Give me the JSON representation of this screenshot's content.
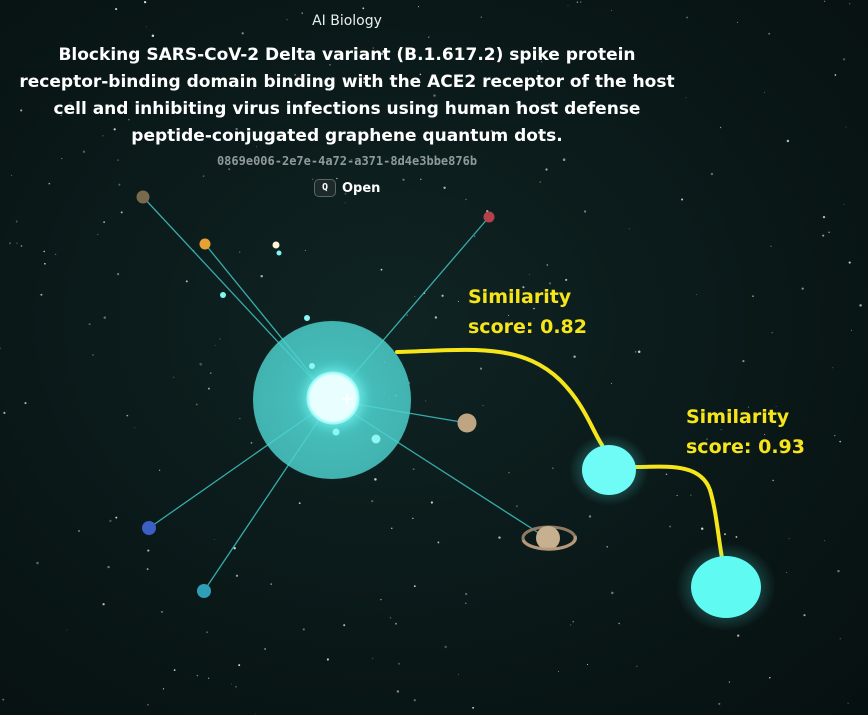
{
  "header": {
    "category": "AI Biology",
    "title": "Blocking SARS-CoV-2 Delta variant (B.1.617.2) spike protein receptor-binding domain binding with the ACE2 receptor of the host cell and inhibiting virus infections using human host defense peptide-conjugated graphene quantum dots.",
    "node_id": "0869e006-2e7e-4a72-a371-8d4e3bbe876b",
    "open_key": "Q",
    "open_label": "Open"
  },
  "annotations": {
    "similarity_1_line1": "Similarity",
    "similarity_1_line2": "score: 0.82",
    "similarity_2_line1": "Similarity",
    "similarity_2_line2": "score: 0.93"
  },
  "colors": {
    "central_star": "#5fe3e0",
    "connection_line": "#3ec6c4",
    "highlight_path": "#f5e51a",
    "label_text": "#f5e51a"
  },
  "icons": {
    "center_marker": "crosshair-plus-icon",
    "ringed_planet": "saturn-planet-icon"
  }
}
